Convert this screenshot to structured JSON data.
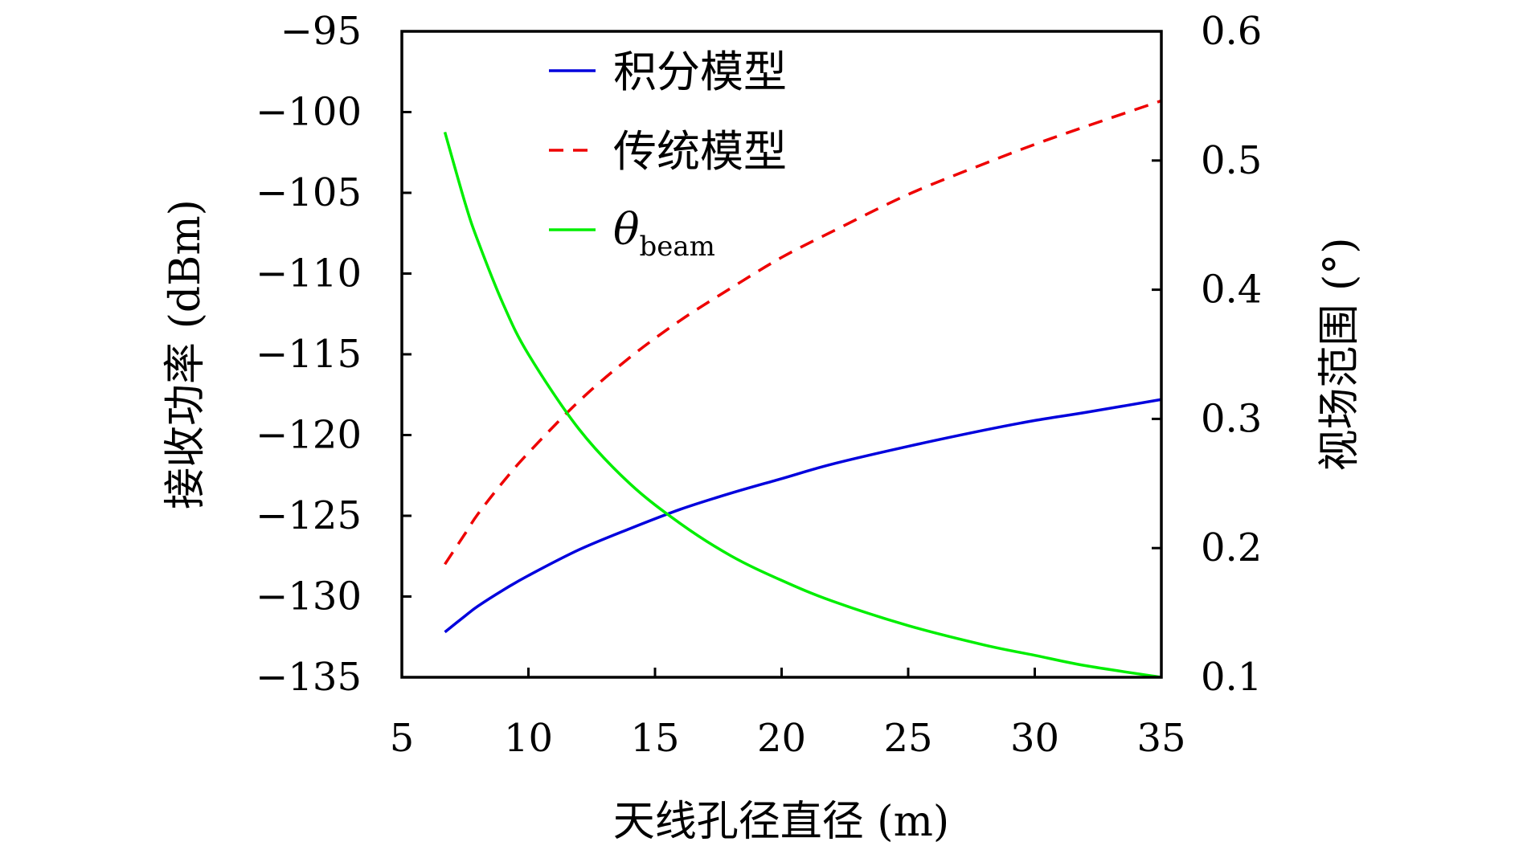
{
  "chart_data": {
    "type": "line",
    "title": "",
    "xlabel": "天线孔径直径 (m)",
    "ylabel": "接收功率 (dBm)",
    "y2label": "视场范围 (°)",
    "xlim": [
      5,
      35
    ],
    "ylim": [
      -135,
      -95
    ],
    "y2lim": [
      0.1,
      0.6
    ],
    "xticks": [
      "5",
      "10",
      "15",
      "20",
      "25",
      "30",
      "35"
    ],
    "yticks": [
      "−95",
      "−100",
      "−105",
      "−110",
      "−115",
      "−120",
      "−125",
      "−130",
      "−135"
    ],
    "y2ticks": [
      "0.6",
      "0.5",
      "0.4",
      "0.3",
      "0.2",
      "0.1"
    ],
    "grid": false,
    "legend_position": "top-left",
    "x": [
      6.7,
      7.5,
      8,
      9,
      10,
      12,
      14,
      16,
      18,
      20,
      22,
      25,
      28,
      30,
      32,
      35
    ],
    "series": [
      {
        "name": "积分模型",
        "axis": "left",
        "color": "#0000dd",
        "style": "solid",
        "values": [
          -132.2,
          -131.2,
          -130.6,
          -129.6,
          -128.7,
          -127.1,
          -125.8,
          -124.6,
          -123.6,
          -122.7,
          -121.8,
          -120.7,
          -119.7,
          -119.1,
          -118.6,
          -117.8
        ]
      },
      {
        "name": "传统模型",
        "axis": "left",
        "color": "#ee0000",
        "style": "dashed",
        "values": [
          -128.0,
          -126.1,
          -124.9,
          -122.9,
          -121.1,
          -117.9,
          -115.2,
          -112.9,
          -110.9,
          -109.0,
          -107.4,
          -105.1,
          -103.2,
          -102.0,
          -100.9,
          -99.3
        ]
      },
      {
        "name": "θ",
        "subscript": "beam",
        "axis": "right",
        "color": "#00ee00",
        "style": "solid",
        "values": [
          0.522,
          0.467,
          0.438,
          0.389,
          0.35,
          0.292,
          0.25,
          0.219,
          0.194,
          0.175,
          0.159,
          0.14,
          0.125,
          0.117,
          0.109,
          0.1
        ]
      }
    ]
  }
}
